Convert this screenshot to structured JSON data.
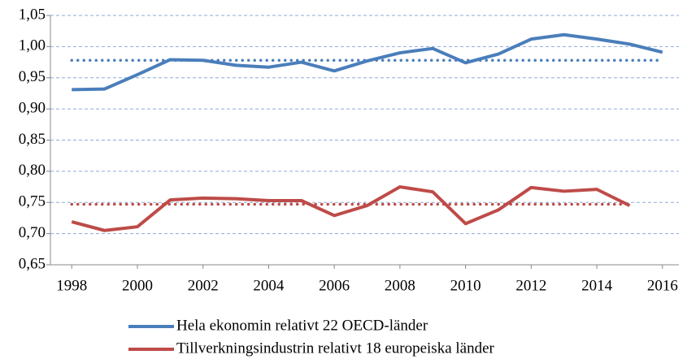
{
  "chart_data": {
    "type": "line",
    "x": [
      1998,
      1999,
      2000,
      2001,
      2002,
      2003,
      2004,
      2005,
      2006,
      2007,
      2008,
      2009,
      2010,
      2011,
      2012,
      2013,
      2014,
      2015,
      2016
    ],
    "series": [
      {
        "name": "Hela ekonomin relativt 22 OECD-länder",
        "color": "#4a7ebb",
        "values": [
          0.931,
          0.932,
          0.955,
          0.979,
          0.978,
          0.97,
          0.967,
          0.975,
          0.961,
          0.977,
          0.99,
          0.997,
          0.974,
          0.988,
          1.012,
          1.019,
          1.012,
          1.004,
          0.991
        ]
      },
      {
        "name": "Tillverkningsindustrin relativt 18 europeiska länder",
        "color": "#be4b48",
        "values": [
          0.719,
          0.705,
          0.711,
          0.754,
          0.757,
          0.756,
          0.753,
          0.753,
          0.729,
          0.745,
          0.775,
          0.767,
          0.716,
          0.738,
          0.774,
          0.768,
          0.771,
          0.745,
          null
        ]
      }
    ],
    "reference_lines": [
      {
        "value": 0.978,
        "color": "#4a7ebb",
        "xrange": [
          1998,
          2016
        ]
      },
      {
        "value": 0.747,
        "color": "#be4b48",
        "xrange": [
          1998,
          2015
        ]
      }
    ],
    "xlim": [
      1997.35,
      2016.5
    ],
    "xticks": [
      1998,
      2000,
      2002,
      2004,
      2006,
      2008,
      2010,
      2012,
      2014,
      2016
    ],
    "ylim": [
      0.65,
      1.05
    ],
    "yticks": [
      {
        "value": 0.65,
        "label": "0,65"
      },
      {
        "value": 0.7,
        "label": "0,70"
      },
      {
        "value": 0.75,
        "label": "0,75"
      },
      {
        "value": 0.8,
        "label": "0,80"
      },
      {
        "value": 0.85,
        "label": "0,85"
      },
      {
        "value": 0.9,
        "label": "0,90"
      },
      {
        "value": 0.95,
        "label": "0,95"
      },
      {
        "value": 1.0,
        "label": "1,00"
      },
      {
        "value": 1.05,
        "label": "1,05"
      }
    ],
    "grid": true,
    "legend": "bottom"
  }
}
